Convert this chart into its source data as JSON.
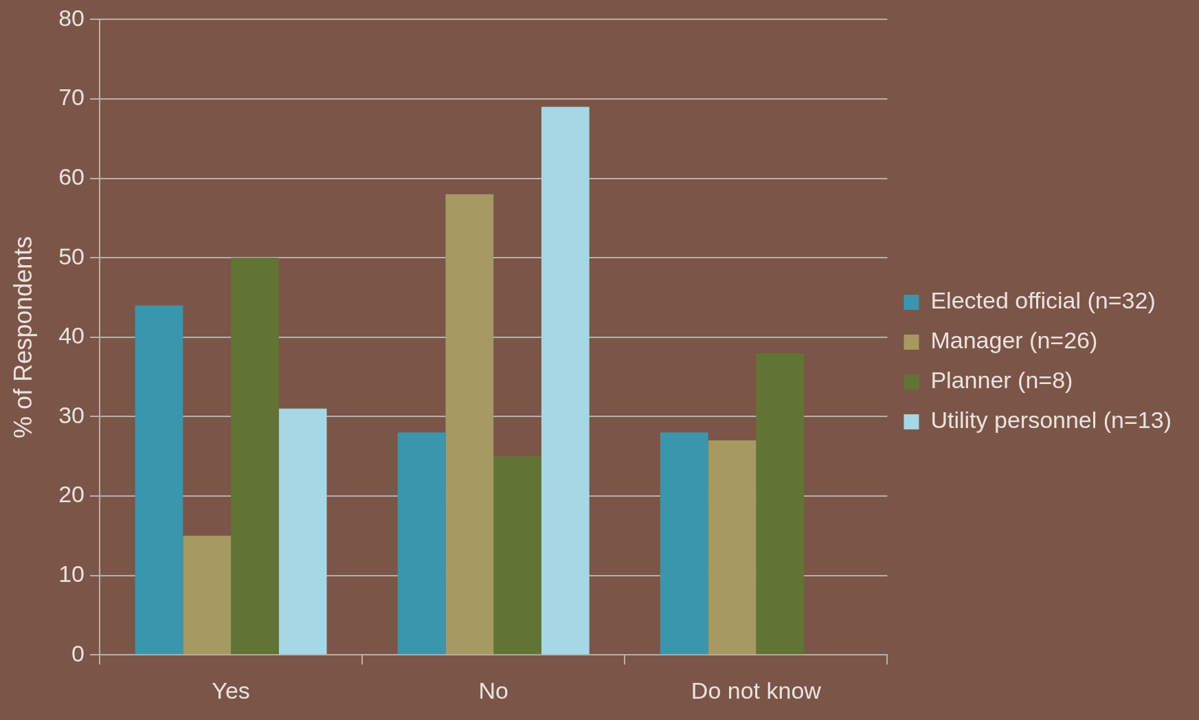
{
  "chart_data": {
    "type": "bar",
    "ylabel": "% of Respondents",
    "categories": [
      "Yes",
      "No",
      "Do not know"
    ],
    "series": [
      {
        "name": "Elected official (n=32)",
        "color": "#3a96ad",
        "values": [
          44,
          28,
          28
        ]
      },
      {
        "name": "Manager (n=26)",
        "color": "#a59a62",
        "values": [
          15,
          58,
          27
        ]
      },
      {
        "name": "Planner (n=8)",
        "color": "#627434",
        "values": [
          50,
          25,
          38
        ]
      },
      {
        "name": "Utility personnel (n=13)",
        "color": "#a5d7e5",
        "values": [
          31,
          69,
          0
        ]
      }
    ],
    "ylim": [
      0,
      80
    ],
    "yticks": [
      0,
      10,
      20,
      30,
      40,
      50,
      60,
      70,
      80
    ],
    "grid": "y",
    "legend": "right"
  }
}
